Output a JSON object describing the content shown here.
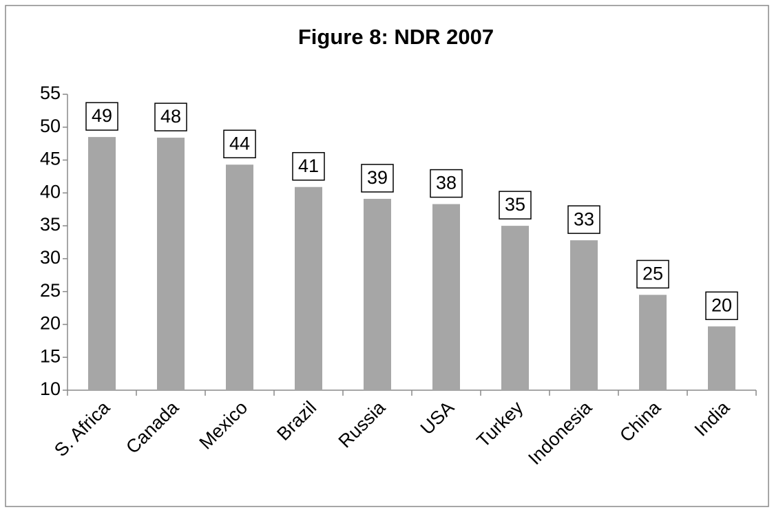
{
  "chart_data": {
    "type": "bar",
    "title": "Figure 8: NDR 2007",
    "categories": [
      "S. Africa",
      "Canada",
      "Mexico",
      "Brazil",
      "Russia",
      "USA",
      "Turkey",
      "Indonesia",
      "China",
      "India"
    ],
    "values": [
      48.5,
      48.4,
      44.3,
      40.9,
      39.1,
      38.3,
      35.0,
      32.8,
      24.5,
      19.7
    ],
    "value_labels": [
      "49",
      "48",
      "44",
      "41",
      "39",
      "38",
      "35",
      "33",
      "25",
      "20"
    ],
    "color": "#a6a6a6",
    "ylim": [
      10,
      55
    ],
    "yticks": [
      10,
      15,
      20,
      25,
      30,
      35,
      40,
      45,
      50,
      55
    ],
    "grid": false
  }
}
